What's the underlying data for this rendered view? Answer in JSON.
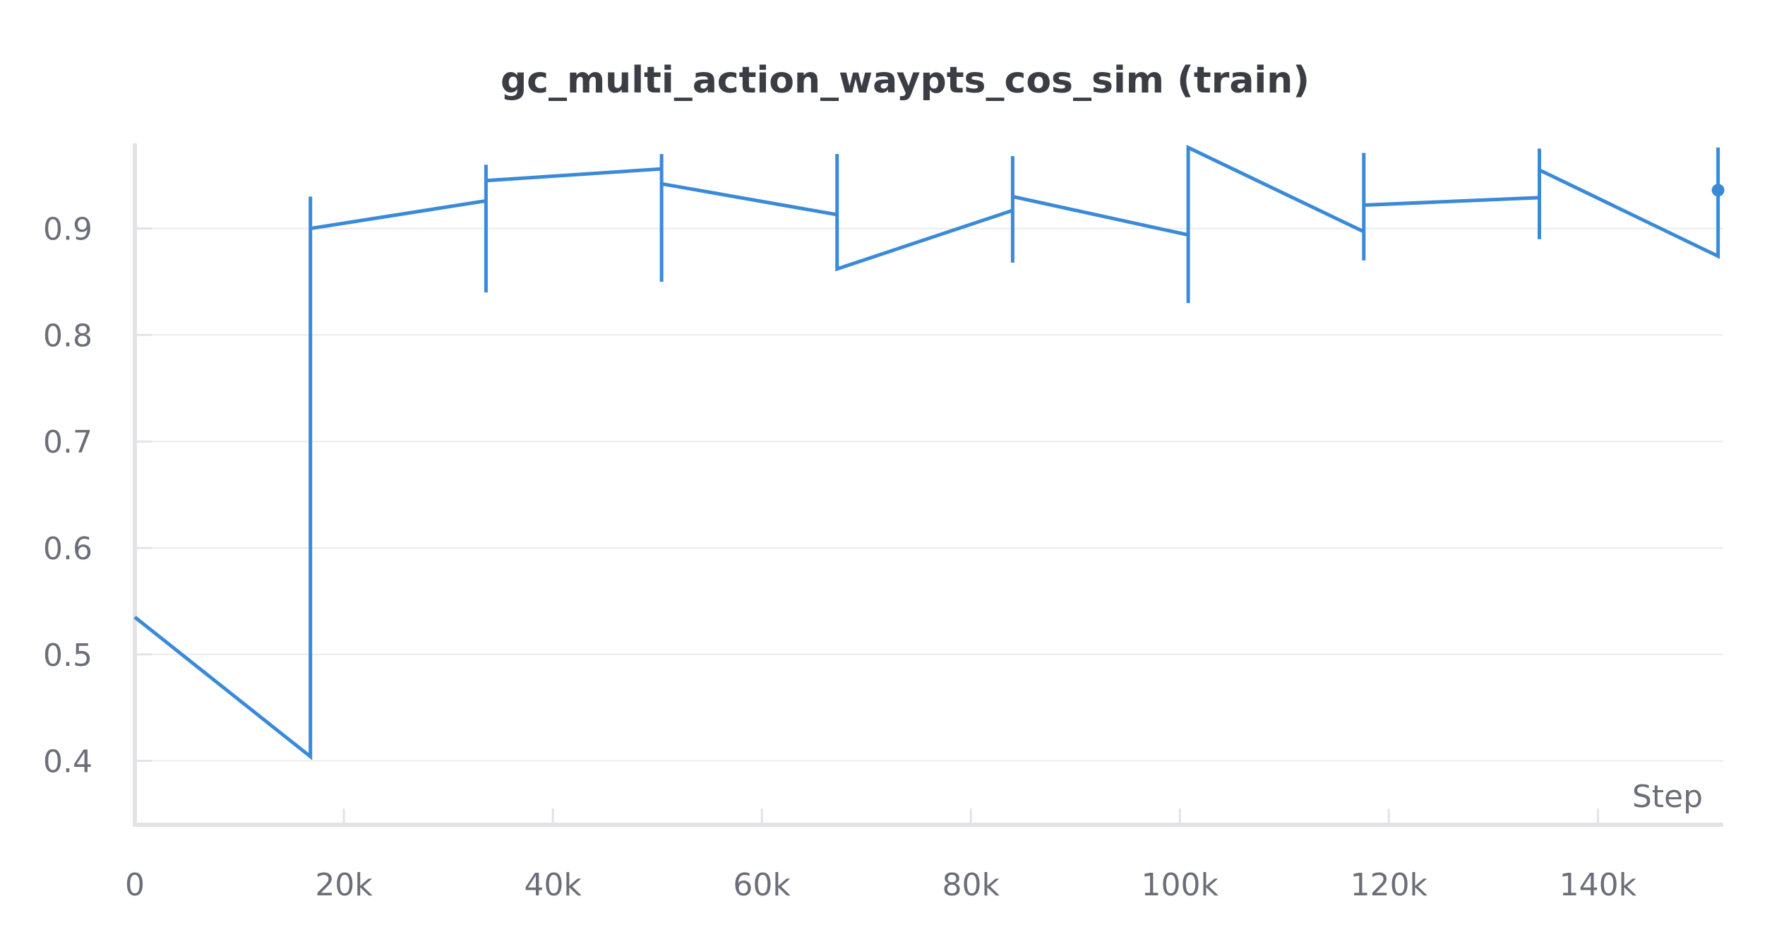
{
  "chart_data": {
    "type": "line",
    "title": "gc_multi_action_waypts_cos_sim (train)",
    "xlabel": "Step",
    "ylabel": "",
    "xlim": [
      0,
      152000
    ],
    "ylim": [
      0.34,
      0.98
    ],
    "grid": true,
    "x_ticks": [
      {
        "value": 0,
        "label": "0"
      },
      {
        "value": 20000,
        "label": "20k"
      },
      {
        "value": 40000,
        "label": "40k"
      },
      {
        "value": 60000,
        "label": "60k"
      },
      {
        "value": 80000,
        "label": "80k"
      },
      {
        "value": 100000,
        "label": "100k"
      },
      {
        "value": 120000,
        "label": "120k"
      },
      {
        "value": 140000,
        "label": "140k"
      }
    ],
    "y_ticks": [
      {
        "value": 0.4,
        "label": "0.4"
      },
      {
        "value": 0.5,
        "label": "0.5"
      },
      {
        "value": 0.6,
        "label": "0.6"
      },
      {
        "value": 0.7,
        "label": "0.7"
      },
      {
        "value": 0.8,
        "label": "0.8"
      },
      {
        "value": 0.9,
        "label": "0.9"
      }
    ],
    "series": [
      {
        "color": "#3a8ad8",
        "points": [
          {
            "x": 0,
            "y": 0.535
          },
          {
            "x": 16800,
            "y": 0.404
          },
          {
            "x": 16800,
            "y": 0.93
          },
          {
            "x": 16800,
            "y": 0.9
          },
          {
            "x": 33600,
            "y": 0.926
          },
          {
            "x": 33600,
            "y": 0.84
          },
          {
            "x": 33600,
            "y": 0.96
          },
          {
            "x": 33600,
            "y": 0.945
          },
          {
            "x": 50400,
            "y": 0.956
          },
          {
            "x": 50400,
            "y": 0.97
          },
          {
            "x": 50400,
            "y": 0.85
          },
          {
            "x": 50400,
            "y": 0.942
          },
          {
            "x": 67200,
            "y": 0.913
          },
          {
            "x": 67200,
            "y": 0.97
          },
          {
            "x": 67200,
            "y": 0.862
          },
          {
            "x": 84000,
            "y": 0.917
          },
          {
            "x": 84000,
            "y": 0.968
          },
          {
            "x": 84000,
            "y": 0.868
          },
          {
            "x": 84000,
            "y": 0.93
          },
          {
            "x": 100800,
            "y": 0.894
          },
          {
            "x": 100800,
            "y": 0.83
          },
          {
            "x": 100800,
            "y": 0.976
          },
          {
            "x": 117600,
            "y": 0.897
          },
          {
            "x": 117600,
            "y": 0.87
          },
          {
            "x": 117600,
            "y": 0.971
          },
          {
            "x": 117600,
            "y": 0.922
          },
          {
            "x": 134400,
            "y": 0.929
          },
          {
            "x": 134400,
            "y": 0.89
          },
          {
            "x": 134400,
            "y": 0.975
          },
          {
            "x": 134400,
            "y": 0.955
          },
          {
            "x": 151500,
            "y": 0.874
          },
          {
            "x": 151500,
            "y": 0.976
          }
        ],
        "last_point": {
          "x": 151500,
          "y": 0.936
        }
      }
    ]
  }
}
